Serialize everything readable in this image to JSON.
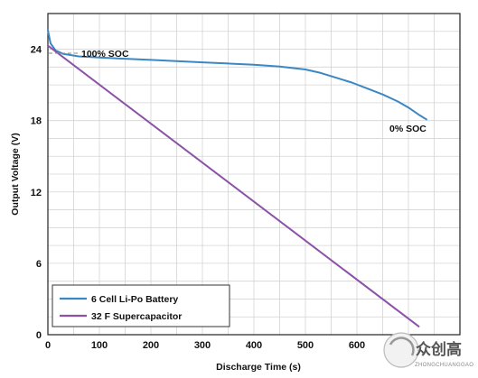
{
  "chart_data": {
    "type": "line",
    "title": "",
    "xlabel": "Discharge Time (s)",
    "ylabel": "Output Voltage (V)",
    "xlim": [
      0,
      800
    ],
    "ylim": [
      0,
      27
    ],
    "x_ticks": [
      0,
      100,
      200,
      300,
      400,
      500,
      600,
      700
    ],
    "y_ticks": [
      0,
      6,
      12,
      18,
      24
    ],
    "grid": true,
    "legend_position": "bottom-left",
    "series": [
      {
        "name": "6 Cell Li-Po Battery",
        "color": "#3b87c4",
        "x": [
          0,
          5,
          15,
          30,
          60,
          100,
          150,
          200,
          250,
          300,
          350,
          400,
          450,
          500,
          530,
          560,
          590,
          620,
          650,
          680,
          700,
          720,
          735
        ],
        "y": [
          25.6,
          24.5,
          23.9,
          23.6,
          23.4,
          23.3,
          23.2,
          23.1,
          23.0,
          22.9,
          22.8,
          22.7,
          22.55,
          22.3,
          22.0,
          21.6,
          21.2,
          20.7,
          20.2,
          19.6,
          19.1,
          18.5,
          18.1
        ]
      },
      {
        "name": "32 F Supercapacitor",
        "color": "#8b52a8",
        "x": [
          0,
          720
        ],
        "y": [
          24.3,
          0.7
        ]
      }
    ],
    "annotations": [
      {
        "text": "100% SOC"
      },
      {
        "text": "0% SOC"
      }
    ]
  },
  "watermark": {
    "main": "众创高",
    "sub": "ZHONGCHUANGGAO"
  }
}
